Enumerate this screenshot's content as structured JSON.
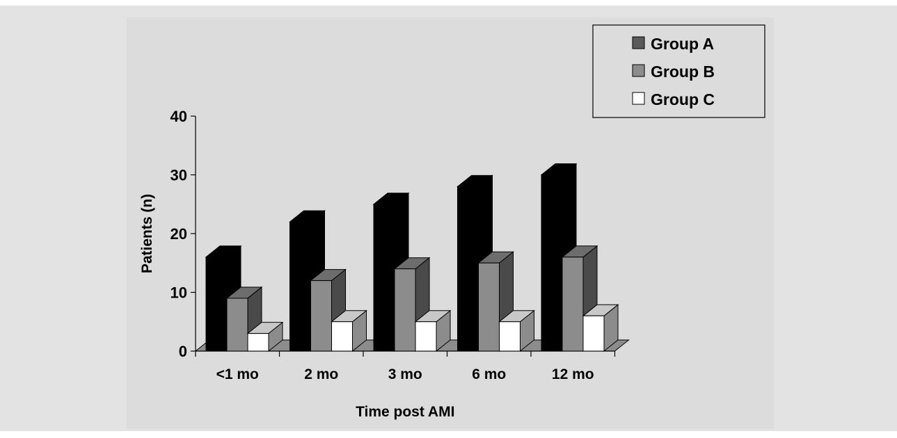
{
  "chart_data": {
    "type": "bar",
    "categories": [
      "<1 mo",
      "2 mo",
      "3 mo",
      "6 mo",
      "12 mo"
    ],
    "series": [
      {
        "name": "Group A",
        "values": [
          16,
          22,
          25,
          28,
          30
        ]
      },
      {
        "name": "Group B",
        "values": [
          9,
          12,
          14,
          15,
          16
        ]
      },
      {
        "name": "Group C",
        "values": [
          3,
          5,
          5,
          5,
          6
        ]
      }
    ],
    "xlabel": "Time post AMI",
    "ylabel": "Patients (n)",
    "ylim": [
      0,
      40
    ],
    "yticks": [
      0,
      10,
      20,
      30,
      40
    ],
    "grid": false,
    "legend_position": "top-right",
    "style": "3d-bar",
    "colors": {
      "series_front": [
        "#000000",
        "#8c8c8c",
        "#ffffff"
      ],
      "series_top": [
        "#000000",
        "#6d6d6d",
        "#c8c8c8"
      ],
      "series_side": [
        "#000000",
        "#4a4a4a",
        "#8c8c8c"
      ],
      "legend_swatch": [
        "#5a5a5a",
        "#8c8c8c",
        "#ffffff"
      ],
      "plot_bg": "#dcdcdc",
      "outer_bg": "#e3e3e3",
      "floor": "#8c8c8c"
    }
  }
}
